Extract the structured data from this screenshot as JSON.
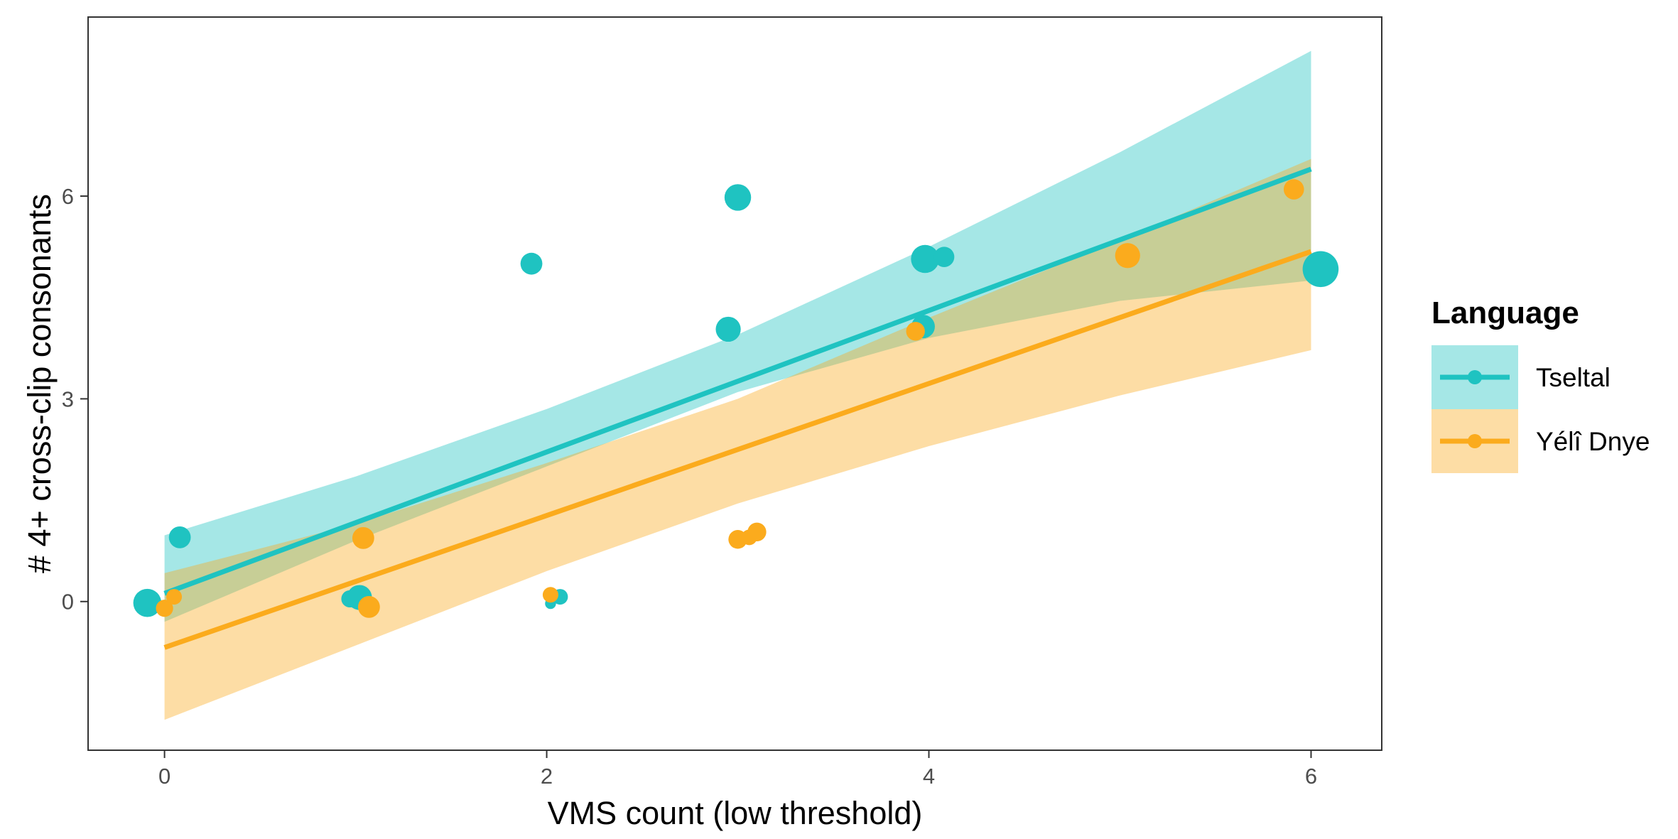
{
  "chart_data": {
    "type": "scatter",
    "xlabel": "VMS count (low threshold)",
    "ylabel": "# 4+ cross-clip consonants",
    "xlim": [
      -0.4,
      6.37
    ],
    "ylim": [
      -2.2,
      8.65
    ],
    "x_ticks": [
      0,
      2,
      4,
      6
    ],
    "y_ticks": [
      0,
      3,
      6
    ],
    "grid": false,
    "legend_title": "Language",
    "legend_position": "right",
    "series": [
      {
        "name": "Tseltal",
        "color": "#1fc3c1",
        "fit": {
          "x_range": [
            0,
            6
          ],
          "y_start": 0.12,
          "y_end": 6.4
        },
        "band": {
          "x": [
            0,
            1,
            2,
            3,
            4,
            5,
            6
          ],
          "lower": [
            -0.3,
            0.9,
            2.0,
            3.1,
            3.9,
            4.45,
            4.75
          ],
          "upper": [
            0.98,
            1.85,
            2.85,
            3.95,
            5.25,
            6.65,
            8.15
          ]
        },
        "points": [
          {
            "x": -0.09,
            "y": -0.02,
            "size": 1.8
          },
          {
            "x": 0.08,
            "y": 0.95,
            "size": 1.4
          },
          {
            "x": 0.97,
            "y": 0.04,
            "size": 1.1
          },
          {
            "x": 1.02,
            "y": 0.06,
            "size": 1.6
          },
          {
            "x": 1.92,
            "y": 5.0,
            "size": 1.4
          },
          {
            "x": 2.02,
            "y": -0.03,
            "size": 0.7
          },
          {
            "x": 2.07,
            "y": 0.07,
            "size": 1.0
          },
          {
            "x": 2.95,
            "y": 4.03,
            "size": 1.6
          },
          {
            "x": 3.0,
            "y": 5.98,
            "size": 1.7
          },
          {
            "x": 3.97,
            "y": 4.07,
            "size": 1.5
          },
          {
            "x": 3.98,
            "y": 5.07,
            "size": 1.8
          },
          {
            "x": 4.08,
            "y": 5.1,
            "size": 1.3
          },
          {
            "x": 6.05,
            "y": 4.92,
            "size": 2.3
          }
        ]
      },
      {
        "name": "Yélî Dnye",
        "color": "#fbab1d",
        "fit": {
          "x_range": [
            0,
            6
          ],
          "y_start": -0.68,
          "y_end": 5.18
        },
        "band": {
          "x": [
            0,
            1,
            2,
            3,
            4,
            5,
            6
          ],
          "lower": [
            -1.75,
            -0.65,
            0.45,
            1.45,
            2.3,
            3.05,
            3.72
          ],
          "upper": [
            0.42,
            1.15,
            2.05,
            3.0,
            4.2,
            5.35,
            6.55
          ]
        },
        "points": [
          {
            "x": 0.0,
            "y": -0.1,
            "size": 1.1
          },
          {
            "x": 0.05,
            "y": 0.07,
            "size": 1.0
          },
          {
            "x": 1.04,
            "y": 0.94,
            "size": 1.4
          },
          {
            "x": 1.07,
            "y": -0.08,
            "size": 1.4
          },
          {
            "x": 2.02,
            "y": 0.1,
            "size": 1.0
          },
          {
            "x": 3.0,
            "y": 0.92,
            "size": 1.2
          },
          {
            "x": 3.06,
            "y": 0.95,
            "size": 1.0
          },
          {
            "x": 3.1,
            "y": 1.03,
            "size": 1.2
          },
          {
            "x": 3.93,
            "y": 4.0,
            "size": 1.2
          },
          {
            "x": 5.04,
            "y": 5.12,
            "size": 1.6
          },
          {
            "x": 5.91,
            "y": 6.1,
            "size": 1.3
          }
        ]
      }
    ]
  }
}
